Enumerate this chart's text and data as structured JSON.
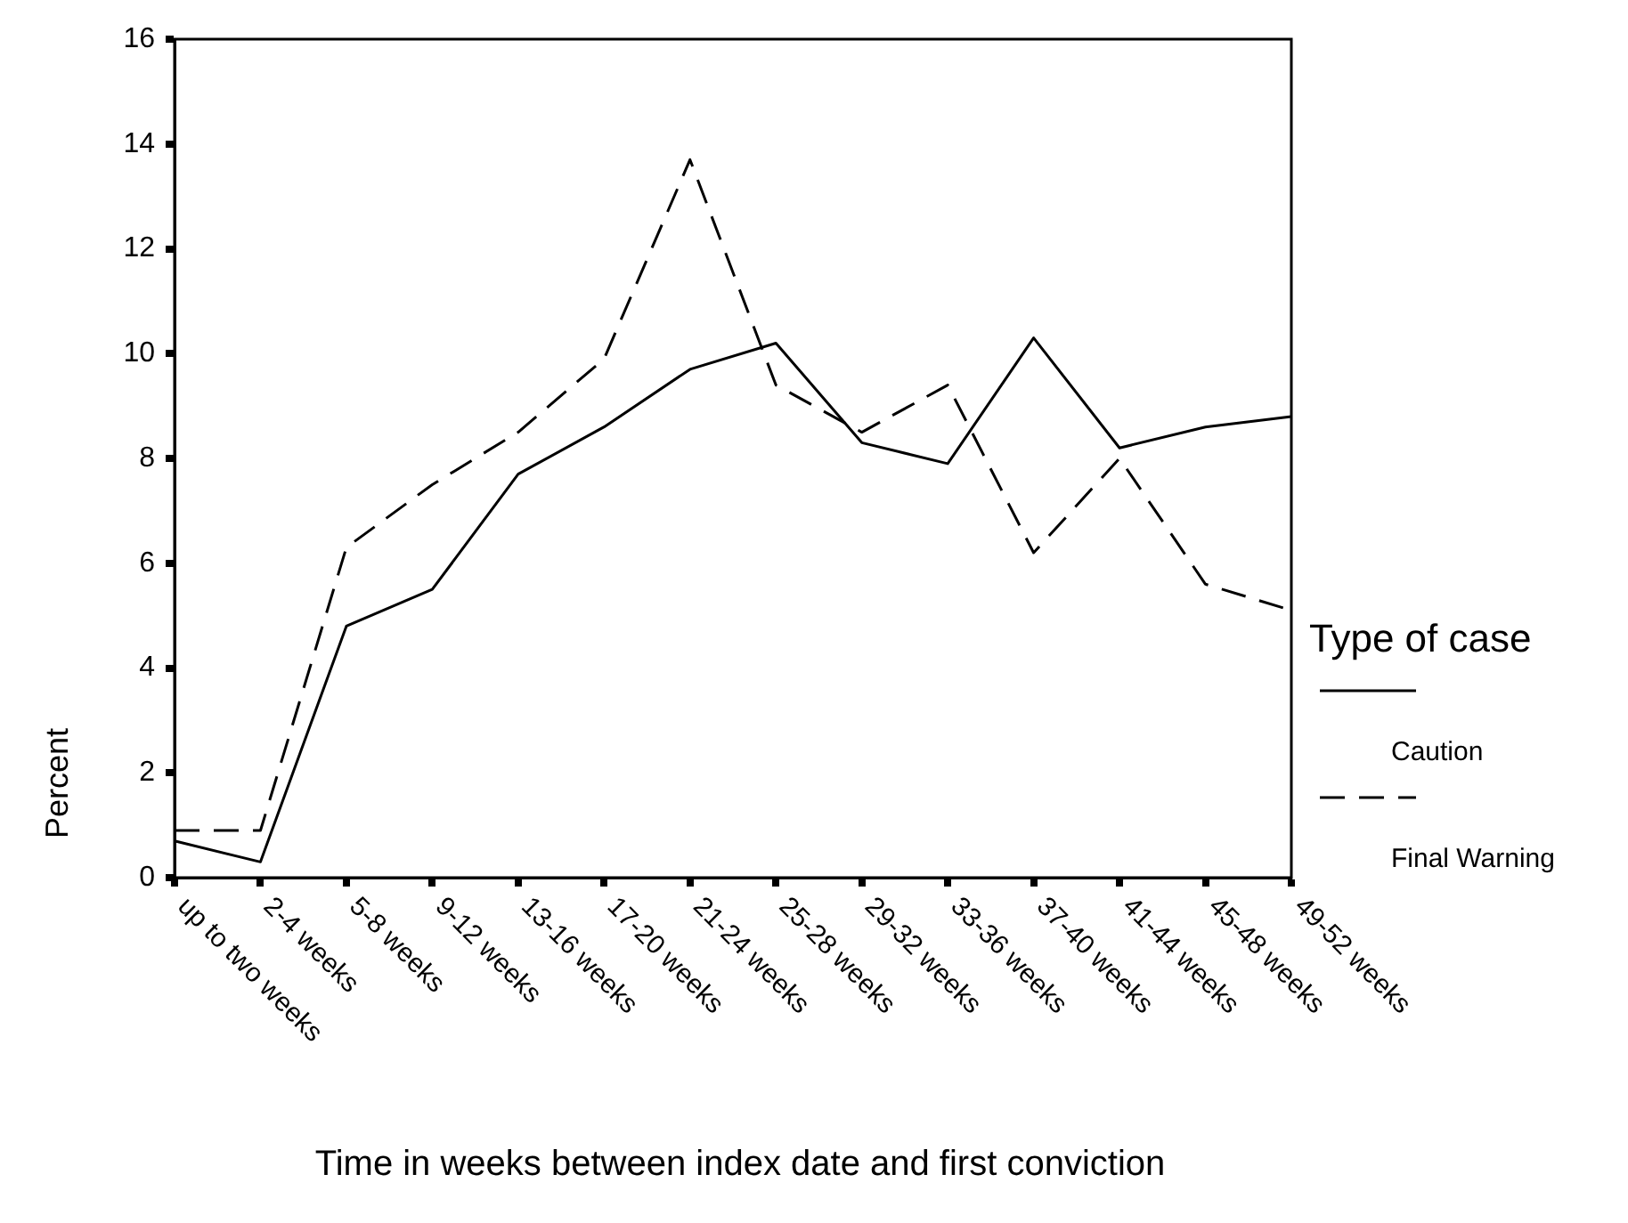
{
  "chart_data": {
    "type": "line",
    "xlabel": "Time in weeks between index date and first conviction",
    "ylabel": "Percent",
    "legend_title": "Type of case",
    "legend": "right",
    "categories": [
      "up to two weeks",
      "2-4 weeks",
      "5-8 weeks",
      "9-12 weeks",
      "13-16 weeks",
      "17-20 weeks",
      "21-24 weeks",
      "25-28 weeks",
      "29-32 weeks",
      "33-36 weeks",
      "37-40 weeks",
      "41-44 weeks",
      "45-48 weeks",
      "49-52 weeks"
    ],
    "series": [
      {
        "name": "Caution",
        "color": "#000000",
        "line_style": "solid",
        "values": [
          0.7,
          0.3,
          4.8,
          5.5,
          7.7,
          8.6,
          9.7,
          10.2,
          8.3,
          7.9,
          10.3,
          8.2,
          8.6,
          8.8
        ]
      },
      {
        "name": "Final Warning",
        "color": "#000000",
        "line_style": "dashed",
        "values": [
          0.9,
          0.9,
          6.3,
          7.5,
          8.5,
          9.9,
          13.7,
          9.4,
          8.5,
          9.4,
          6.2,
          8.0,
          5.6,
          5.1
        ]
      }
    ],
    "ylim": [
      0,
      16
    ],
    "yticks": [
      0,
      2,
      4,
      6,
      8,
      10,
      12,
      14,
      16
    ],
    "grid": false,
    "marker": "none"
  }
}
